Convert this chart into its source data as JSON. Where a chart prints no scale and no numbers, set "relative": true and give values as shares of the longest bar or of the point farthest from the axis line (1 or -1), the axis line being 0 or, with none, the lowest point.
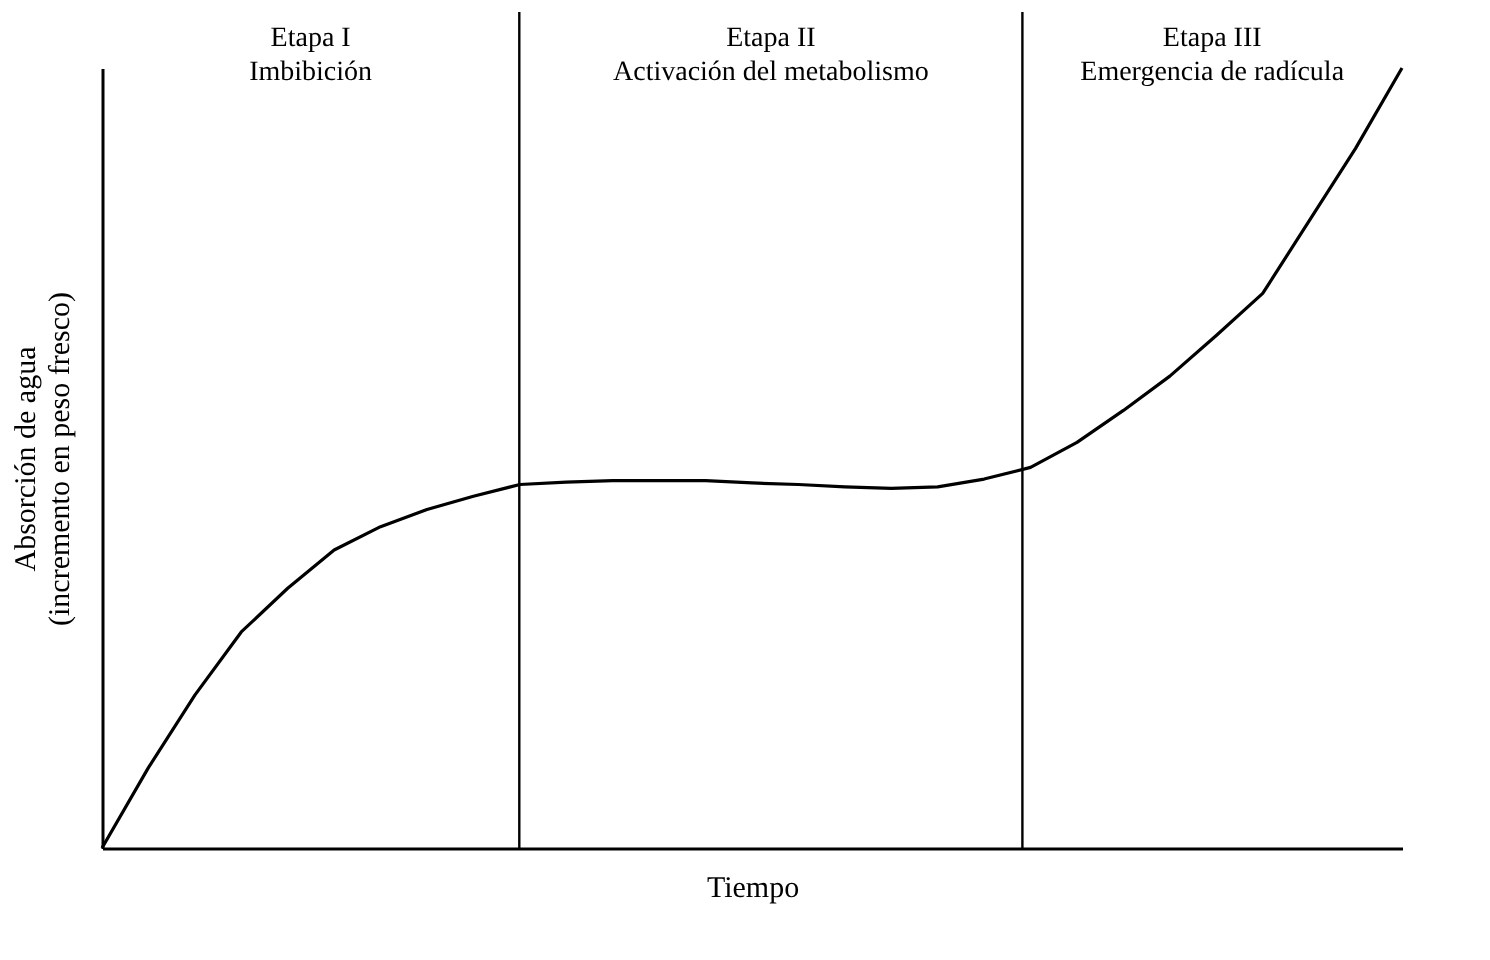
{
  "chart_data": {
    "type": "line",
    "relative": true,
    "xlabel": "Tiempo",
    "ylabel": "Absorción de agua\n(incremento en peso fresco)",
    "categories": [
      null,
      null,
      null,
      null,
      null,
      null,
      null,
      null,
      null,
      null,
      null,
      null,
      null,
      null,
      null,
      null,
      null,
      null,
      null,
      null,
      null,
      null,
      null,
      null,
      null,
      null,
      null,
      null,
      null
    ],
    "series": [
      {
        "color": "#000000",
        "values": [
          0,
          0.103,
          0.196,
          0.277,
          0.333,
          0.382,
          0.412,
          0.434,
          0.451,
          0.466,
          0.469,
          0.471,
          0.471,
          0.471,
          0.468,
          0.466,
          0.463,
          0.461,
          0.463,
          0.473,
          0.488,
          0.52,
          0.561,
          0.605,
          0.657,
          0.711,
          0.804,
          0.897,
          1
        ]
      }
    ],
    "annotations": [
      "Etapa I\nImbibición",
      "Etapa II\nActivación del metabolismo",
      "Etapa III\nEmergencia de radícula"
    ]
  }
}
